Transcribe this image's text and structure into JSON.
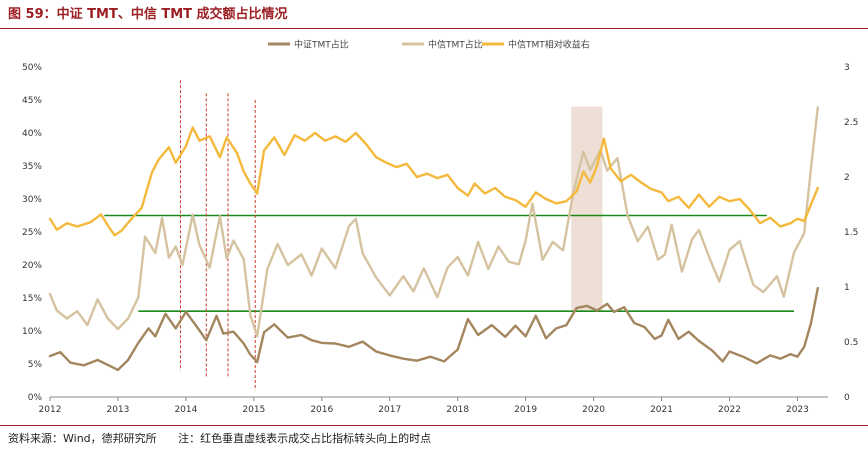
{
  "figure": {
    "title": "图 59：中证 TMT、中信 TMT 成交额占比情况",
    "source": "资料来源：Wind，德邦研究所",
    "note": "注：红色垂直虚线表示成交占比指标转头向上的时点"
  },
  "chart_data": {
    "type": "line",
    "x_ticks": [
      "2012",
      "2013",
      "2014",
      "2015",
      "2016",
      "2017",
      "2018",
      "2019",
      "2020",
      "2021",
      "2022",
      "2023"
    ],
    "y_left_ticks": [
      "0%",
      "5%",
      "10%",
      "15%",
      "20%",
      "25%",
      "30%",
      "35%",
      "40%",
      "45%",
      "50%"
    ],
    "y_right_ticks": [
      "0",
      "0.5",
      "1",
      "1.5",
      "2",
      "2.5",
      "3"
    ],
    "ylim_left": [
      0,
      50
    ],
    "ylim_right": [
      0,
      3
    ],
    "legend_position": "top",
    "series": [
      {
        "name": "中证TMT占比",
        "axis": "left",
        "color": "#a4865e",
        "points": [
          [
            2012.0,
            6.2
          ],
          [
            2012.15,
            6.8
          ],
          [
            2012.3,
            5.2
          ],
          [
            2012.5,
            4.8
          ],
          [
            2012.7,
            5.6
          ],
          [
            2012.9,
            4.6
          ],
          [
            2013.0,
            4.1
          ],
          [
            2013.15,
            5.6
          ],
          [
            2013.3,
            8.2
          ],
          [
            2013.45,
            10.4
          ],
          [
            2013.55,
            9.2
          ],
          [
            2013.7,
            12.6
          ],
          [
            2013.85,
            10.4
          ],
          [
            2014.0,
            12.9
          ],
          [
            2014.15,
            10.8
          ],
          [
            2014.3,
            8.6
          ],
          [
            2014.45,
            12.3
          ],
          [
            2014.55,
            9.6
          ],
          [
            2014.7,
            9.9
          ],
          [
            2014.85,
            8.1
          ],
          [
            2014.95,
            6.4
          ],
          [
            2015.05,
            5.3
          ],
          [
            2015.15,
            9.8
          ],
          [
            2015.3,
            11.0
          ],
          [
            2015.5,
            9.0
          ],
          [
            2015.7,
            9.4
          ],
          [
            2015.85,
            8.6
          ],
          [
            2016.0,
            8.2
          ],
          [
            2016.2,
            8.1
          ],
          [
            2016.4,
            7.6
          ],
          [
            2016.6,
            8.4
          ],
          [
            2016.8,
            6.9
          ],
          [
            2017.0,
            6.3
          ],
          [
            2017.2,
            5.8
          ],
          [
            2017.4,
            5.5
          ],
          [
            2017.6,
            6.1
          ],
          [
            2017.8,
            5.4
          ],
          [
            2018.0,
            7.2
          ],
          [
            2018.15,
            11.8
          ],
          [
            2018.3,
            9.4
          ],
          [
            2018.5,
            10.9
          ],
          [
            2018.7,
            9.1
          ],
          [
            2018.85,
            10.8
          ],
          [
            2019.0,
            9.2
          ],
          [
            2019.15,
            12.3
          ],
          [
            2019.3,
            8.9
          ],
          [
            2019.45,
            10.4
          ],
          [
            2019.6,
            10.9
          ],
          [
            2019.75,
            13.5
          ],
          [
            2019.9,
            13.8
          ],
          [
            2020.05,
            13.1
          ],
          [
            2020.2,
            14.1
          ],
          [
            2020.3,
            12.9
          ],
          [
            2020.45,
            13.6
          ],
          [
            2020.6,
            11.2
          ],
          [
            2020.75,
            10.6
          ],
          [
            2020.9,
            8.8
          ],
          [
            2021.0,
            9.3
          ],
          [
            2021.1,
            11.7
          ],
          [
            2021.25,
            8.8
          ],
          [
            2021.4,
            9.9
          ],
          [
            2021.55,
            8.5
          ],
          [
            2021.75,
            7.0
          ],
          [
            2021.9,
            5.4
          ],
          [
            2022.0,
            6.9
          ],
          [
            2022.2,
            6.1
          ],
          [
            2022.4,
            5.1
          ],
          [
            2022.6,
            6.3
          ],
          [
            2022.75,
            5.8
          ],
          [
            2022.9,
            6.5
          ],
          [
            2023.0,
            6.1
          ],
          [
            2023.1,
            7.6
          ],
          [
            2023.2,
            11.2
          ],
          [
            2023.3,
            16.5
          ]
        ]
      },
      {
        "name": "中信TMT占比",
        "axis": "left",
        "color": "#d5c3a0",
        "points": [
          [
            2012.0,
            15.6
          ],
          [
            2012.1,
            13.1
          ],
          [
            2012.25,
            11.9
          ],
          [
            2012.4,
            13.0
          ],
          [
            2012.55,
            10.9
          ],
          [
            2012.7,
            14.8
          ],
          [
            2012.85,
            11.9
          ],
          [
            2013.0,
            10.3
          ],
          [
            2013.15,
            11.9
          ],
          [
            2013.3,
            15.1
          ],
          [
            2013.4,
            24.3
          ],
          [
            2013.55,
            21.8
          ],
          [
            2013.65,
            27.1
          ],
          [
            2013.75,
            21.1
          ],
          [
            2013.85,
            22.8
          ],
          [
            2013.95,
            20.0
          ],
          [
            2014.1,
            27.6
          ],
          [
            2014.2,
            23.0
          ],
          [
            2014.35,
            19.6
          ],
          [
            2014.5,
            27.4
          ],
          [
            2014.6,
            21.0
          ],
          [
            2014.7,
            23.7
          ],
          [
            2014.85,
            20.9
          ],
          [
            2014.95,
            12.4
          ],
          [
            2015.05,
            9.2
          ],
          [
            2015.2,
            19.4
          ],
          [
            2015.35,
            23.2
          ],
          [
            2015.5,
            20.0
          ],
          [
            2015.7,
            21.6
          ],
          [
            2015.85,
            18.4
          ],
          [
            2016.0,
            22.5
          ],
          [
            2016.2,
            19.5
          ],
          [
            2016.4,
            25.9
          ],
          [
            2016.5,
            27.0
          ],
          [
            2016.6,
            21.8
          ],
          [
            2016.8,
            18.1
          ],
          [
            2017.0,
            15.4
          ],
          [
            2017.2,
            18.3
          ],
          [
            2017.35,
            16.0
          ],
          [
            2017.5,
            19.5
          ],
          [
            2017.7,
            15.1
          ],
          [
            2017.85,
            19.6
          ],
          [
            2018.0,
            21.2
          ],
          [
            2018.15,
            18.4
          ],
          [
            2018.3,
            23.5
          ],
          [
            2018.45,
            19.4
          ],
          [
            2018.6,
            22.8
          ],
          [
            2018.75,
            20.5
          ],
          [
            2018.9,
            20.1
          ],
          [
            2019.0,
            23.7
          ],
          [
            2019.1,
            29.3
          ],
          [
            2019.25,
            20.8
          ],
          [
            2019.4,
            23.5
          ],
          [
            2019.55,
            22.2
          ],
          [
            2019.7,
            30.9
          ],
          [
            2019.85,
            37.2
          ],
          [
            2019.95,
            34.4
          ],
          [
            2020.1,
            37.4
          ],
          [
            2020.2,
            34.3
          ],
          [
            2020.35,
            36.2
          ],
          [
            2020.5,
            27.5
          ],
          [
            2020.65,
            23.6
          ],
          [
            2020.8,
            25.8
          ],
          [
            2020.95,
            20.8
          ],
          [
            2021.05,
            21.6
          ],
          [
            2021.15,
            26.1
          ],
          [
            2021.3,
            19.0
          ],
          [
            2021.45,
            23.9
          ],
          [
            2021.55,
            25.3
          ],
          [
            2021.7,
            21.2
          ],
          [
            2021.85,
            17.5
          ],
          [
            2022.0,
            22.3
          ],
          [
            2022.15,
            23.6
          ],
          [
            2022.35,
            17.0
          ],
          [
            2022.5,
            15.9
          ],
          [
            2022.7,
            18.3
          ],
          [
            2022.8,
            15.2
          ],
          [
            2022.95,
            21.9
          ],
          [
            2023.1,
            24.8
          ],
          [
            2023.2,
            34.7
          ],
          [
            2023.3,
            43.9
          ]
        ]
      },
      {
        "name": "中信TMT相对收益右",
        "axis": "right",
        "color": "#f4b93c",
        "points": [
          [
            2012.0,
            1.62
          ],
          [
            2012.1,
            1.52
          ],
          [
            2012.25,
            1.58
          ],
          [
            2012.4,
            1.55
          ],
          [
            2012.6,
            1.59
          ],
          [
            2012.75,
            1.66
          ],
          [
            2012.85,
            1.56
          ],
          [
            2012.95,
            1.47
          ],
          [
            2013.05,
            1.51
          ],
          [
            2013.2,
            1.62
          ],
          [
            2013.35,
            1.72
          ],
          [
            2013.5,
            2.04
          ],
          [
            2013.6,
            2.16
          ],
          [
            2013.75,
            2.27
          ],
          [
            2013.85,
            2.13
          ],
          [
            2014.0,
            2.28
          ],
          [
            2014.1,
            2.45
          ],
          [
            2014.2,
            2.33
          ],
          [
            2014.35,
            2.37
          ],
          [
            2014.5,
            2.18
          ],
          [
            2014.6,
            2.36
          ],
          [
            2014.75,
            2.22
          ],
          [
            2014.85,
            2.05
          ],
          [
            2014.95,
            1.94
          ],
          [
            2015.05,
            1.85
          ],
          [
            2015.15,
            2.24
          ],
          [
            2015.3,
            2.36
          ],
          [
            2015.45,
            2.2
          ],
          [
            2015.6,
            2.38
          ],
          [
            2015.75,
            2.33
          ],
          [
            2015.9,
            2.4
          ],
          [
            2016.05,
            2.33
          ],
          [
            2016.2,
            2.37
          ],
          [
            2016.35,
            2.32
          ],
          [
            2016.5,
            2.4
          ],
          [
            2016.65,
            2.3
          ],
          [
            2016.8,
            2.18
          ],
          [
            2016.95,
            2.13
          ],
          [
            2017.1,
            2.09
          ],
          [
            2017.25,
            2.12
          ],
          [
            2017.4,
            2.0
          ],
          [
            2017.55,
            2.03
          ],
          [
            2017.7,
            1.99
          ],
          [
            2017.85,
            2.02
          ],
          [
            2018.0,
            1.9
          ],
          [
            2018.15,
            1.83
          ],
          [
            2018.25,
            1.94
          ],
          [
            2018.4,
            1.85
          ],
          [
            2018.55,
            1.9
          ],
          [
            2018.7,
            1.82
          ],
          [
            2018.85,
            1.79
          ],
          [
            2019.0,
            1.73
          ],
          [
            2019.15,
            1.86
          ],
          [
            2019.3,
            1.8
          ],
          [
            2019.45,
            1.76
          ],
          [
            2019.6,
            1.78
          ],
          [
            2019.75,
            1.87
          ],
          [
            2019.85,
            2.05
          ],
          [
            2019.95,
            1.95
          ],
          [
            2020.05,
            2.1
          ],
          [
            2020.15,
            2.35
          ],
          [
            2020.25,
            2.08
          ],
          [
            2020.4,
            1.96
          ],
          [
            2020.55,
            2.02
          ],
          [
            2020.7,
            1.95
          ],
          [
            2020.85,
            1.89
          ],
          [
            2021.0,
            1.86
          ],
          [
            2021.1,
            1.78
          ],
          [
            2021.25,
            1.82
          ],
          [
            2021.4,
            1.72
          ],
          [
            2021.55,
            1.84
          ],
          [
            2021.7,
            1.73
          ],
          [
            2021.85,
            1.82
          ],
          [
            2022.0,
            1.78
          ],
          [
            2022.15,
            1.8
          ],
          [
            2022.3,
            1.7
          ],
          [
            2022.45,
            1.58
          ],
          [
            2022.6,
            1.63
          ],
          [
            2022.75,
            1.55
          ],
          [
            2022.9,
            1.58
          ],
          [
            2023.0,
            1.62
          ],
          [
            2023.1,
            1.6
          ],
          [
            2023.2,
            1.75
          ],
          [
            2023.3,
            1.9
          ]
        ]
      }
    ],
    "hlines": [
      {
        "axis": "left",
        "y": 27.5,
        "x_range": [
          2012.8,
          2022.55
        ],
        "color": "#1a8a1a"
      },
      {
        "axis": "left",
        "y": 13.0,
        "x_range": [
          2013.3,
          2022.95
        ],
        "color": "#1a8a1a"
      }
    ],
    "vlines": [
      {
        "x": 2013.92,
        "y_range": [
          4,
          48
        ],
        "color": "#c83c28",
        "dash": true
      },
      {
        "x": 2014.3,
        "y_range": [
          3,
          46
        ],
        "color": "#c83c28",
        "dash": true
      },
      {
        "x": 2014.62,
        "y_range": [
          2.8,
          46
        ],
        "color": "#c83c28",
        "dash": true
      },
      {
        "x": 2015.02,
        "y_range": [
          1,
          45
        ],
        "color": "#c83c28",
        "dash": true
      }
    ],
    "shaded_regions": [
      {
        "x_range": [
          2019.67,
          2020.13
        ],
        "y_range": [
          13,
          44
        ],
        "color": "#eddfd5"
      }
    ]
  }
}
